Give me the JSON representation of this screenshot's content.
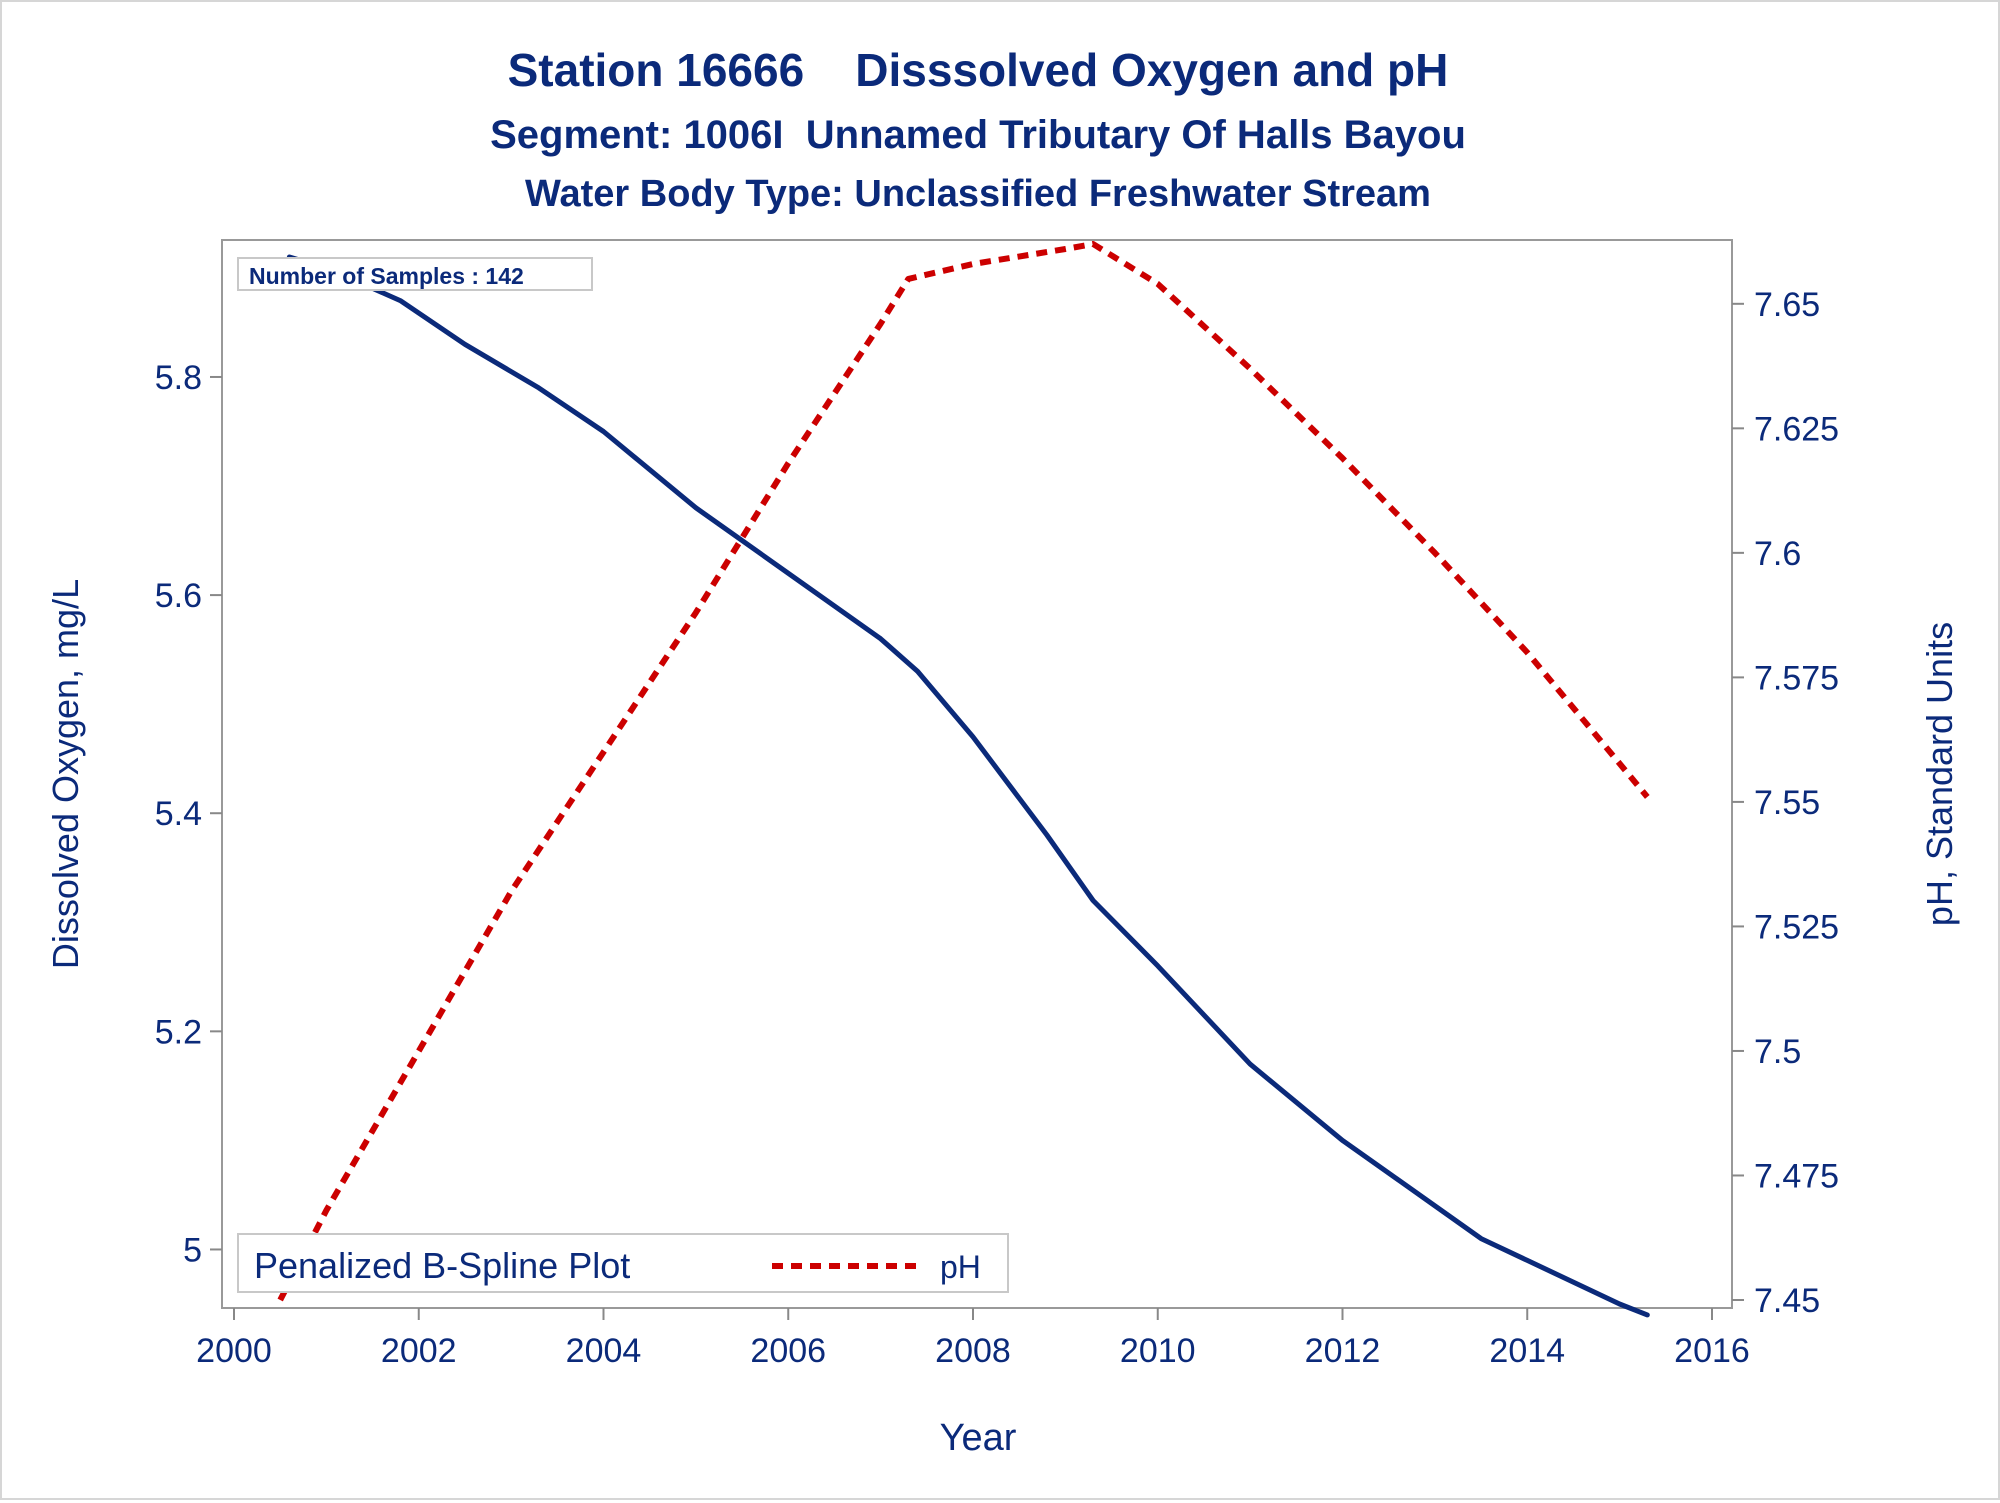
{
  "chart_data": {
    "type": "line",
    "title": "Station 16666    Disssolved Oxygen and pH",
    "subtitle": "Segment: 1006I  Unnamed Tributary Of Halls Bayou",
    "subtitle2": "Water Body Type: Unclassified Freshwater Stream",
    "xlabel": "Year",
    "ylabel": "Dissolved Oxygen, mg/L",
    "y2label": "pH, Standard Units",
    "xlim": [
      2000,
      2016
    ],
    "ylim": [
      4.95,
      5.91
    ],
    "y2lim": [
      7.45,
      7.66
    ],
    "x_ticks": [
      "2000",
      "2002",
      "2004",
      "2006",
      "2008",
      "2010",
      "2012",
      "2014",
      "2016"
    ],
    "y_ticks": [
      "5",
      "5.2",
      "5.4",
      "5.6",
      "5.8"
    ],
    "y2_ticks": [
      "7.45",
      "7.475",
      "7.5",
      "7.525",
      "7.55",
      "7.575",
      "7.6",
      "7.625",
      "7.65"
    ],
    "annotation": "Number of Samples : 142",
    "legend": {
      "title": "Penalized B-Spline Plot",
      "placement": "bottom-left",
      "entries": [
        "pH"
      ]
    },
    "grid": false,
    "colors": {
      "do": "#0b2a7a",
      "ph": "#cc0000",
      "text": "#0b2a7a",
      "axis": "#888888"
    },
    "series": [
      {
        "axis": "left",
        "style": "solid",
        "x": [
          2000.6,
          2001.0,
          2001.8,
          2002.5,
          2003.3,
          2004.0,
          2005.0,
          2006.0,
          2007.0,
          2007.4,
          2008.0,
          2008.8,
          2009.3,
          2010.0,
          2011.0,
          2012.0,
          2013.0,
          2013.5,
          2014.0,
          2015.0,
          2015.3
        ],
        "values": [
          5.91,
          5.9,
          5.87,
          5.83,
          5.79,
          5.75,
          5.68,
          5.62,
          5.56,
          5.53,
          5.47,
          5.38,
          5.32,
          5.26,
          5.17,
          5.1,
          5.04,
          5.01,
          4.99,
          4.95,
          4.94
        ]
      },
      {
        "name": "pH",
        "axis": "right",
        "style": "dashed",
        "x": [
          2000.5,
          2001.0,
          2002.0,
          2003.0,
          2004.0,
          2005.0,
          2006.0,
          2007.0,
          2007.3,
          2008.0,
          2009.0,
          2009.3,
          2010.0,
          2011.0,
          2012.0,
          2013.0,
          2014.0,
          2015.3
        ],
        "values": [
          7.45,
          7.468,
          7.5,
          7.532,
          7.56,
          7.588,
          7.618,
          7.646,
          7.655,
          7.658,
          7.661,
          7.662,
          7.654,
          7.637,
          7.619,
          7.6,
          7.58,
          7.551
        ]
      }
    ]
  }
}
